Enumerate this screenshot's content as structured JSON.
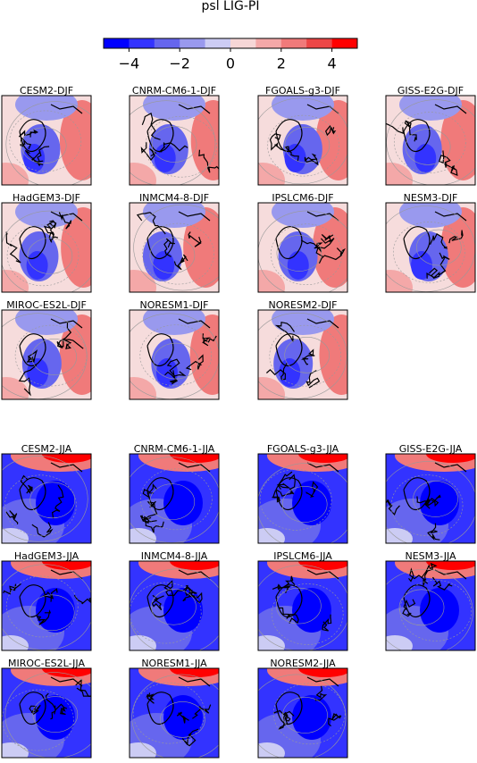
{
  "chart_data": {
    "type": "map-panels",
    "title": "psl LIG-PI",
    "colorbar": {
      "lim": [
        -5,
        5
      ],
      "ticks": [
        {
          "value": -4,
          "label": "−4"
        },
        {
          "value": -2,
          "label": "−2"
        },
        0,
        2,
        4
      ],
      "colors": [
        "#0000ff",
        "#3333ff",
        "#6666ee",
        "#9999ee",
        "#ccccf4",
        "#f6d6d6",
        "#f4a8a8",
        "#f07a7a",
        "#ec4646",
        "#ff0000"
      ]
    },
    "djf_panels": [
      "CESM2-DJF",
      "CNRM-CM6-1-DJF",
      "FGOALS-g3-DJF",
      "GISS-E2G-DJF",
      "HadGEM3-DJF",
      "INMCM4-8-DJF",
      "IPSLCM6-DJF",
      "NESM3-DJF",
      "MIROC-ES2L-DJF",
      "NORESM1-DJF",
      "NORESM2-DJF"
    ],
    "jja_panels": [
      "CESM2-JJA",
      "CNRM-CM6-1-JJA",
      "FGOALS-g3-JJA",
      "GISS-E2G-JJA",
      "HadGEM3-JJA",
      "INMCM4-8-JJA",
      "IPSLCM6-JJA",
      "NESM3-JJA",
      "MIROC-ES2L-JJA",
      "NORESM1-JJA",
      "NORESM2-JJA"
    ]
  }
}
